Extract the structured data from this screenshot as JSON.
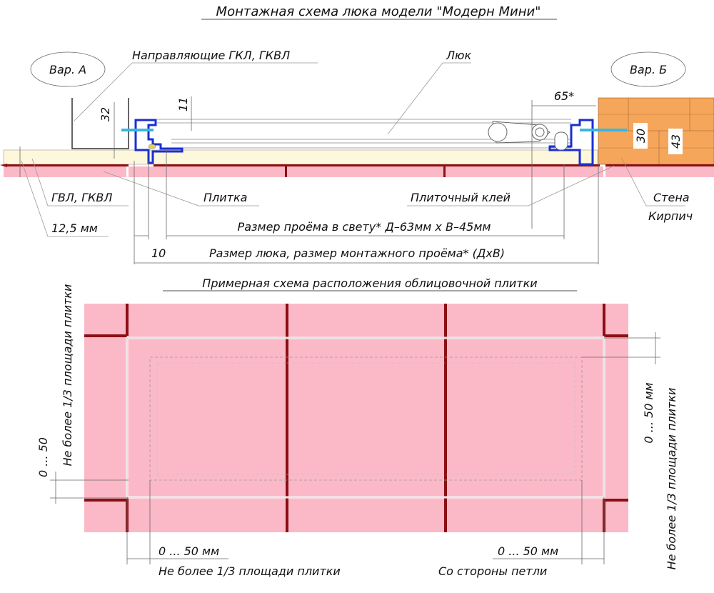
{
  "title": "Монтажная схема люка модели \"Модерн Мини\"",
  "section": {
    "var_a": "Вар. А",
    "var_b": "Вар. Б",
    "guides_label": "Направляющие ГКЛ, ГКВЛ",
    "hatch_label": "Люк",
    "dim_65": "65*",
    "dim_32": "32",
    "dim_11": "11",
    "dim_30": "30",
    "dim_43": "43",
    "gvl_label": "ГВЛ, ГКВЛ",
    "tile_label": "Плитка",
    "adhesive_label": "Плиточный клей",
    "wall_label": "Стена",
    "brick_label": "Кирпич",
    "thickness_label": "12,5 мм",
    "clear_opening_label": "Размер проёма в свету* Д–63мм х В–45мм",
    "dim_10": "10",
    "hatch_size_label": "Размер люка, размер монтажного проёма* (ДхВ)"
  },
  "layout_scheme": {
    "title": "Примерная схема расположения облицовочной плитки",
    "left_range": "0 ... 50",
    "left_note": "Не более 1/3 площади плитки",
    "right_range": "0 ... 50 мм",
    "right_note": "Не более 1/3 площади плитки",
    "bottom_left_range": "0 ... 50 мм",
    "bottom_left_note": "Не более 1/3 площади плитки",
    "bottom_right_range": "0 ... 50 мм",
    "bottom_right_note": "Со стороны петли"
  },
  "colors": {
    "tile": "#fbb9c7",
    "grout": "#8b0f14",
    "gypsum": "#fdf7dc",
    "brick": "#f6a65a",
    "profile": "#1a2fd0",
    "screw": "#37b7e0"
  }
}
